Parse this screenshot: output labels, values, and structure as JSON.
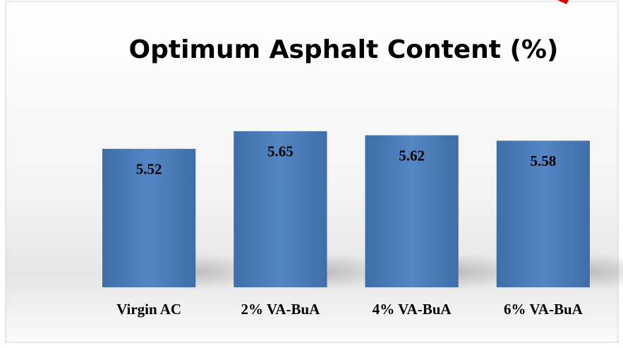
{
  "chart_data": {
    "type": "bar",
    "title": "Optimum Asphalt Content (%)",
    "categories": [
      "Virgin AC",
      "2% VA-BuA",
      "4% VA-BuA",
      "6% VA-BuA"
    ],
    "values": [
      5.52,
      5.65,
      5.62,
      5.58
    ],
    "color": "#4f81bd",
    "ylim": [
      4.5,
      5.8
    ]
  }
}
